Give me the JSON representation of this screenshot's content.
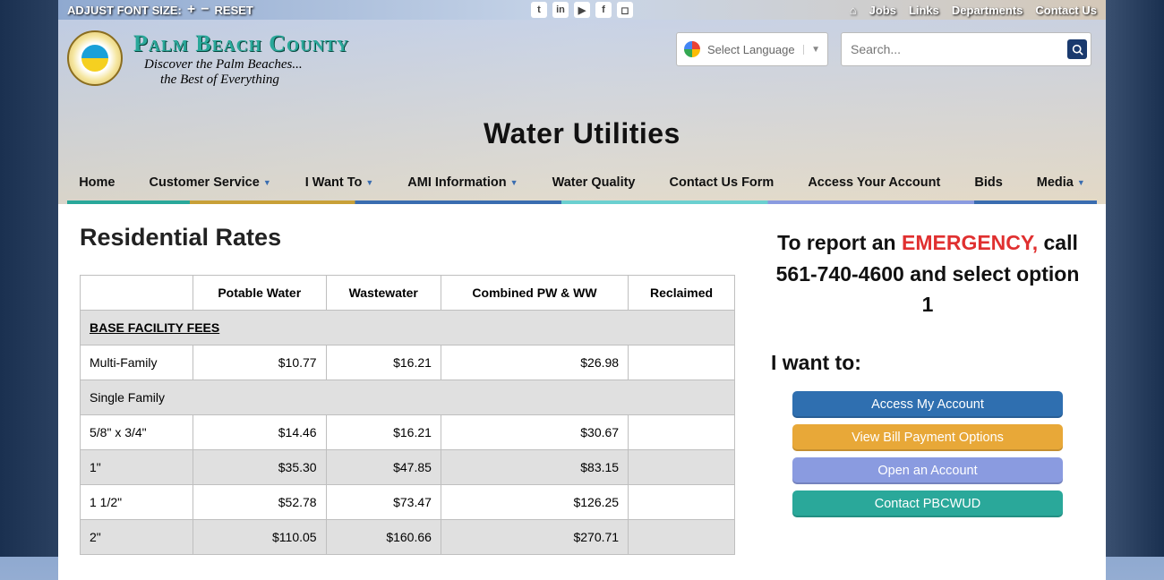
{
  "topbar": {
    "adjust_label": "ADJUST FONT SIZE:",
    "reset": "RESET",
    "links": [
      "Jobs",
      "Links",
      "Departments",
      "Contact Us"
    ]
  },
  "brand": {
    "title": "Palm Beach County",
    "tag1": "Discover the Palm Beaches...",
    "tag2": "the Best of Everything"
  },
  "lang": {
    "label": "Select Language"
  },
  "search": {
    "placeholder": "Search..."
  },
  "dept_title": "Water Utilities",
  "nav": {
    "home": "Home",
    "cust": "Customer Service",
    "iwant": "I Want To",
    "ami": "AMI Information",
    "wq": "Water Quality",
    "contact": "Contact Us Form",
    "acct": "Access Your Account",
    "bids": "Bids",
    "media": "Media"
  },
  "page_title": "Residential Rates",
  "table": {
    "headers": [
      "",
      "Potable Water",
      "Wastewater",
      "Combined PW & WW",
      "Reclaimed"
    ],
    "section": "BASE FACILITY FEES",
    "rows": [
      {
        "label": "Multi-Family",
        "pw": "$10.77",
        "ww": "$16.21",
        "cb": "$26.98",
        "rc": "",
        "cls": ""
      },
      {
        "label": "Single Family",
        "pw": "",
        "ww": "",
        "cb": "",
        "rc": "",
        "cls": "sub"
      },
      {
        "label": "5/8\" x 3/4\"",
        "pw": "$14.46",
        "ww": "$16.21",
        "cb": "$30.67",
        "rc": "",
        "cls": ""
      },
      {
        "label": "1\"",
        "pw": "$35.30",
        "ww": "$47.85",
        "cb": "$83.15",
        "rc": "",
        "cls": "alt"
      },
      {
        "label": "1 1/2\"",
        "pw": "$52.78",
        "ww": "$73.47",
        "cb": "$126.25",
        "rc": "",
        "cls": ""
      },
      {
        "label": "2\"",
        "pw": "$110.05",
        "ww": "$160.66",
        "cb": "$270.71",
        "rc": "",
        "cls": "alt"
      }
    ]
  },
  "emergency": {
    "pre": "To report an ",
    "em": "EMERGENCY,",
    "post": " call",
    "line2": "561-740-4600 and select option 1"
  },
  "iwant_title": "I want to:",
  "buttons": {
    "b1": "Access My Account",
    "b2": "View Bill Payment Options",
    "b3": "Open an Account",
    "b4": "Contact PBCWUD"
  }
}
